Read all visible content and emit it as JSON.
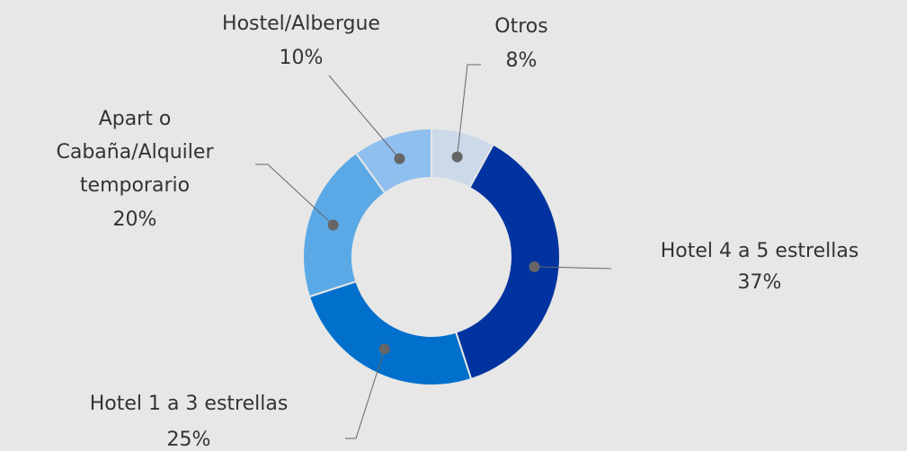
{
  "chart_data": {
    "type": "donut",
    "categories": [
      "Otros",
      "Hotel 4 a 5 estrellas",
      "Hotel 1 a 3 estrellas",
      "Apart o\nCabaña/Alquiler\ntemporario",
      "Hostel/Albergue"
    ],
    "values": [
      8,
      37,
      25,
      20,
      10
    ],
    "value_labels": [
      "8%",
      "37%",
      "25%",
      "20%",
      "10%"
    ],
    "colors": [
      "#ccd9e8",
      "#0033a0",
      "#0070cc",
      "#5aa9e6",
      "#8fbfee"
    ]
  }
}
